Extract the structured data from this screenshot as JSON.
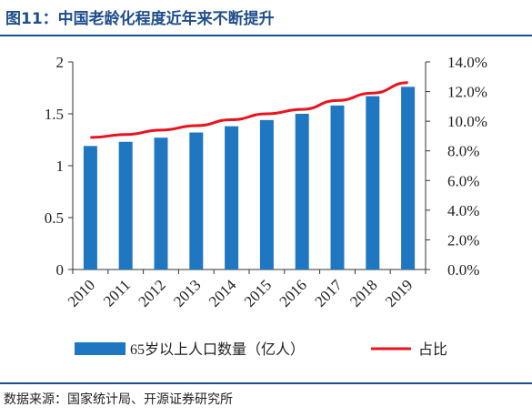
{
  "title": "图11：中国老龄化程度近年来不断提升",
  "source": "数据来源：国家统计局、开源证券研究所",
  "colors": {
    "bar": "#1f77c2",
    "line": "#e8141e",
    "accent": "#1f4e8c"
  },
  "chart_data": {
    "type": "bar",
    "categories": [
      "2010",
      "2011",
      "2012",
      "2013",
      "2014",
      "2015",
      "2016",
      "2017",
      "2018",
      "2019"
    ],
    "series": [
      {
        "name": "65岁以上人口数量（亿人）",
        "type": "bar",
        "axis": "left",
        "values": [
          1.19,
          1.23,
          1.27,
          1.32,
          1.38,
          1.44,
          1.5,
          1.58,
          1.67,
          1.76
        ]
      },
      {
        "name": "占比",
        "type": "line",
        "axis": "right",
        "values": [
          8.9,
          9.1,
          9.4,
          9.7,
          10.1,
          10.5,
          10.8,
          11.4,
          11.9,
          12.6
        ]
      }
    ],
    "y_left": {
      "ylim": [
        0,
        2
      ],
      "ticks": [
        "0",
        "0.5",
        "1",
        "1.5",
        "2"
      ],
      "tick_values": [
        0,
        0.5,
        1,
        1.5,
        2
      ]
    },
    "y_right": {
      "ylim": [
        0,
        14
      ],
      "ticks": [
        "0.0%",
        "2.0%",
        "4.0%",
        "6.0%",
        "8.0%",
        "10.0%",
        "12.0%",
        "14.0%"
      ],
      "tick_values": [
        0,
        2,
        4,
        6,
        8,
        10,
        12,
        14
      ]
    },
    "grid": false,
    "legend_position": "bottom"
  }
}
